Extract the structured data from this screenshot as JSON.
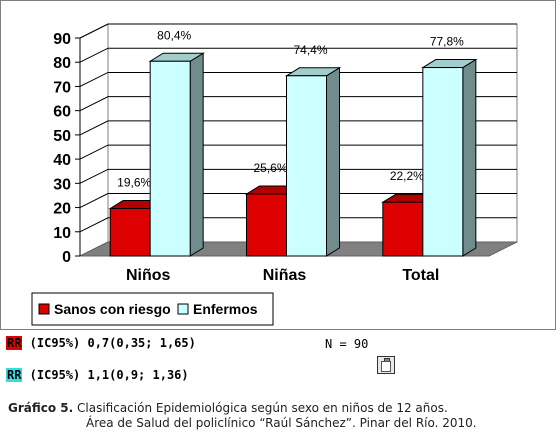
{
  "chart_data": {
    "type": "bar",
    "categories": [
      "Niños",
      "Niñas",
      "Total"
    ],
    "series": [
      {
        "name": "Sanos con riesgo",
        "values": [
          19.6,
          25.6,
          22.2
        ],
        "labels": [
          "19,6%",
          "25,6%",
          "22,2%"
        ],
        "color": "#dd0000"
      },
      {
        "name": "Enfermos",
        "values": [
          80.4,
          74.4,
          77.8
        ],
        "labels": [
          "80,4%",
          "74,4%",
          "77,8%"
        ],
        "color": "#ccffff"
      }
    ],
    "ylim": [
      0,
      90
    ],
    "yticks": [
      "0",
      "10",
      "20",
      "30",
      "40",
      "50",
      "60",
      "70",
      "80",
      "90"
    ],
    "grid": true,
    "legend_position": "bottom-left",
    "style": "3d"
  },
  "annotations": {
    "rr1": {
      "tag": "RR",
      "text": " (IC95%) 0,7(0,35; 1,65)",
      "color": "#e00000"
    },
    "rr2": {
      "tag": "RR",
      "text": " (IC95%) 1,1(0,9; 1,36)",
      "color": "#33dddd"
    },
    "n": "N = 90"
  },
  "caption": {
    "label": "Gráfico 5.",
    "line1": " Clasificación Epidemiológica según sexo en niños de 12 años.",
    "line2": "Área de Salud del policlínico “Raúl Sánchez”. Pinar del Río. 2010."
  },
  "icons": {
    "clipboard": "clipboard-icon"
  }
}
